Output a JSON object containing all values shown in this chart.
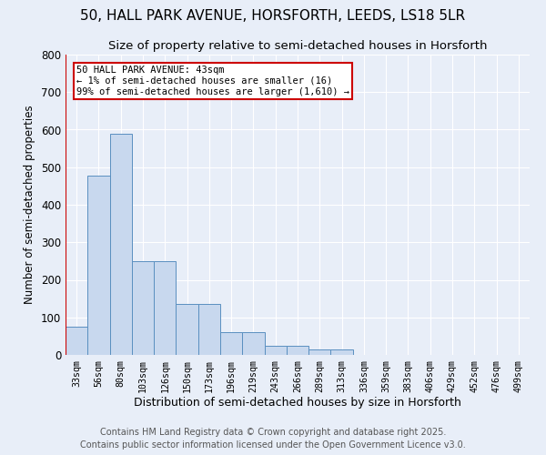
{
  "title1": "50, HALL PARK AVENUE, HORSFORTH, LEEDS, LS18 5LR",
  "title2": "Size of property relative to semi-detached houses in Horsforth",
  "xlabel": "Distribution of semi-detached houses by size in Horsforth",
  "ylabel": "Number of semi-detached properties",
  "categories": [
    "33sqm",
    "56sqm",
    "80sqm",
    "103sqm",
    "126sqm",
    "150sqm",
    "173sqm",
    "196sqm",
    "219sqm",
    "243sqm",
    "266sqm",
    "289sqm",
    "313sqm",
    "336sqm",
    "359sqm",
    "383sqm",
    "406sqm",
    "429sqm",
    "452sqm",
    "476sqm",
    "499sqm"
  ],
  "values": [
    75,
    478,
    590,
    250,
    250,
    135,
    135,
    60,
    60,
    25,
    25,
    15,
    15,
    0,
    0,
    0,
    0,
    0,
    0,
    0,
    0
  ],
  "bar_color": "#c8d8ee",
  "bar_edge_color": "#5a8fc0",
  "annotation_title": "50 HALL PARK AVENUE: 43sqm",
  "annotation_line1": "← 1% of semi-detached houses are smaller (16)",
  "annotation_line2": "99% of semi-detached houses are larger (1,610) →",
  "vline_color": "#cc0000",
  "annotation_box_edgecolor": "#cc0000",
  "ylim": [
    0,
    800
  ],
  "yticks": [
    0,
    100,
    200,
    300,
    400,
    500,
    600,
    700,
    800
  ],
  "footer1": "Contains HM Land Registry data © Crown copyright and database right 2025.",
  "footer2": "Contains public sector information licensed under the Open Government Licence v3.0.",
  "bg_color": "#e8eef8",
  "plot_bg_color": "#e8eef8",
  "grid_color": "#ffffff",
  "title1_fontsize": 11,
  "title2_fontsize": 9.5,
  "footer_fontsize": 7
}
